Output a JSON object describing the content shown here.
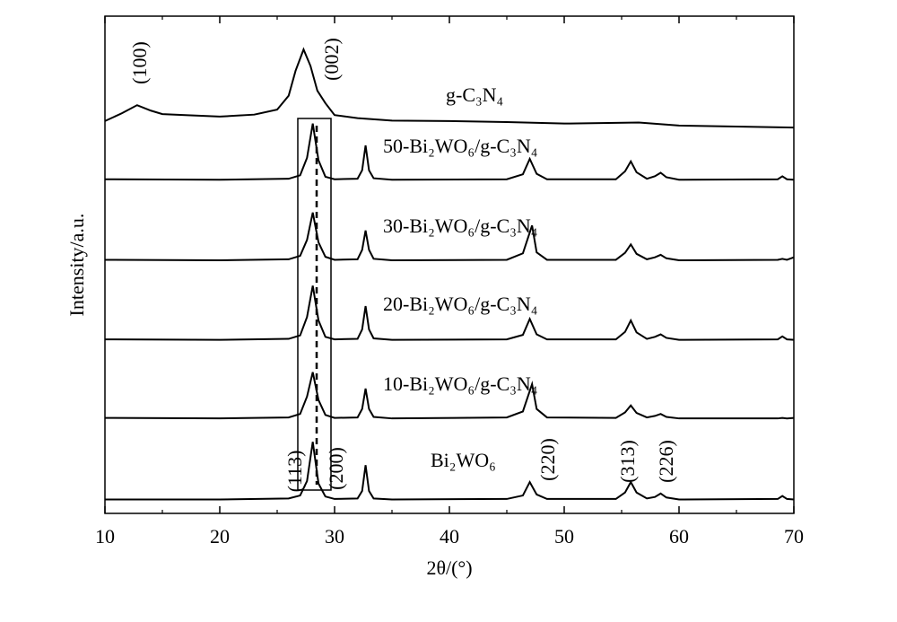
{
  "chart_data": {
    "type": "line",
    "xlabel": "2θ/(°)",
    "ylabel": "Intensity/a.u.",
    "xlim": [
      10,
      70
    ],
    "xticks": [
      10,
      20,
      30,
      40,
      50,
      60,
      70
    ],
    "xminorticks": [
      15,
      25,
      35,
      45,
      55,
      65
    ],
    "ylim": [
      0,
      100
    ],
    "series": [
      {
        "name": "Bi₂WO₆",
        "color": "#000000",
        "x": [
          10,
          20,
          26,
          27,
          27.6,
          28.1,
          28.6,
          29.2,
          30,
          32,
          32.4,
          32.7,
          33,
          33.4,
          35,
          45,
          46.4,
          47,
          47.6,
          48.5,
          54.5,
          55.3,
          55.8,
          56.3,
          57.2,
          57.9,
          58.4,
          58.9,
          60,
          68.6,
          69,
          69.4,
          70
        ],
        "values": [
          2.8,
          2.8,
          3.0,
          3.6,
          6.5,
          14.4,
          6.0,
          3.4,
          2.9,
          3.0,
          4.5,
          9.7,
          4.5,
          3.0,
          2.8,
          2.9,
          3.6,
          6.3,
          3.8,
          2.9,
          2.9,
          4.2,
          6.3,
          4.2,
          3.0,
          3.3,
          4.0,
          3.2,
          2.8,
          2.9,
          3.5,
          2.9,
          2.8
        ]
      },
      {
        "name": "10-Bi₂WO₆/g-C₃N₄",
        "color": "#000000",
        "x": [
          10,
          20,
          26,
          27,
          27.6,
          28.1,
          28.6,
          29.2,
          30,
          32,
          32.4,
          32.7,
          33,
          33.4,
          35,
          45,
          46.4,
          47.2,
          47.6,
          48.5,
          54.5,
          55.3,
          55.8,
          56.3,
          57.2,
          57.9,
          58.4,
          58.9,
          60,
          68.6,
          69,
          69.4,
          70
        ],
        "values": [
          19.2,
          19.1,
          19.3,
          20,
          23.5,
          28.4,
          22.8,
          19.8,
          19.2,
          19.3,
          21,
          25.1,
          21,
          19.4,
          19.1,
          19.3,
          20.5,
          26,
          21,
          19.3,
          19.2,
          20.3,
          21.7,
          20.2,
          19.3,
          19.6,
          20,
          19.4,
          19.1,
          19.1,
          19.2,
          19.1,
          19.2
        ]
      },
      {
        "name": "20-Bi₂WO₆/g-C₃N₄",
        "color": "#000000",
        "x": [
          10,
          20,
          26,
          27,
          27.6,
          28.1,
          28.6,
          29.2,
          30,
          32,
          32.4,
          32.7,
          33,
          33.4,
          35,
          45,
          46.4,
          47,
          47.6,
          48.5,
          54.5,
          55.3,
          55.8,
          56.3,
          57.2,
          57.9,
          58.4,
          58.9,
          60,
          68.6,
          69,
          69.4,
          70
        ],
        "values": [
          35,
          34.9,
          35.1,
          35.8,
          39.5,
          45.8,
          38.8,
          35.5,
          35,
          35.1,
          37,
          41.7,
          37,
          35.2,
          34.9,
          35,
          35.9,
          39.1,
          36,
          35,
          35,
          36.5,
          38.8,
          36.4,
          35.1,
          35.5,
          36,
          35.3,
          34.9,
          35,
          35.6,
          35,
          34.9
        ]
      },
      {
        "name": "30-Bi₂WO₆/g-C₃N₄",
        "color": "#000000",
        "x": [
          10,
          20,
          26,
          27,
          27.6,
          28.1,
          28.6,
          29.2,
          30,
          32,
          32.4,
          32.7,
          33,
          33.4,
          35,
          45,
          46.4,
          47.2,
          47.6,
          48.5,
          54.5,
          55.3,
          55.8,
          56.3,
          57.2,
          57.9,
          58.4,
          58.9,
          60,
          68.6,
          69,
          69.4,
          70
        ],
        "values": [
          51,
          50.9,
          51.1,
          51.8,
          55,
          60.5,
          54.5,
          51.6,
          51,
          51.1,
          53,
          56.9,
          53,
          51.2,
          50.9,
          51,
          52.3,
          57.9,
          52.5,
          51,
          51,
          52.4,
          54.1,
          52.2,
          51.1,
          51.5,
          52,
          51.3,
          50.9,
          51,
          51.2,
          51,
          51.5
        ]
      },
      {
        "name": "50-Bi₂WO₆/g-C₃N₄",
        "color": "#000000",
        "x": [
          10,
          20,
          26,
          27,
          27.6,
          28.1,
          28.6,
          29.2,
          30,
          32,
          32.4,
          32.7,
          33,
          33.4,
          35,
          45,
          46.4,
          47,
          47.6,
          48.5,
          54.5,
          55.3,
          55.8,
          56.3,
          57.2,
          57.9,
          58.4,
          58.9,
          60,
          68.6,
          69,
          69.4,
          70
        ],
        "values": [
          67.2,
          67.1,
          67.3,
          68,
          71.5,
          78.4,
          71,
          67.7,
          67.2,
          67.3,
          69,
          74,
          69,
          67.4,
          67.1,
          67.2,
          68.2,
          71.3,
          68.3,
          67.2,
          67.2,
          68.8,
          70.8,
          68.6,
          67.3,
          67.8,
          68.5,
          67.6,
          67.1,
          67.2,
          67.8,
          67.2,
          67.1
        ]
      },
      {
        "name": "g-C₃N₄",
        "color": "#000000",
        "x": [
          10,
          11.5,
          12.8,
          14,
          15,
          17,
          20,
          23,
          25,
          26,
          26.6,
          27.3,
          27.9,
          28.5,
          29.2,
          30,
          32,
          35,
          40,
          45,
          50,
          56.5,
          60,
          65,
          70
        ],
        "values": [
          78.9,
          80.5,
          82.1,
          81,
          80.3,
          80.1,
          79.8,
          80.2,
          81.2,
          84,
          89,
          93.3,
          90,
          85,
          82.5,
          80.1,
          79.5,
          79,
          78.9,
          78.7,
          78.4,
          78.6,
          78,
          77.8,
          77.6
        ]
      }
    ],
    "annotations": [
      "(100)",
      "(002)",
      "(113)",
      "(200)",
      "(220)",
      "(313)",
      "(226)"
    ]
  }
}
